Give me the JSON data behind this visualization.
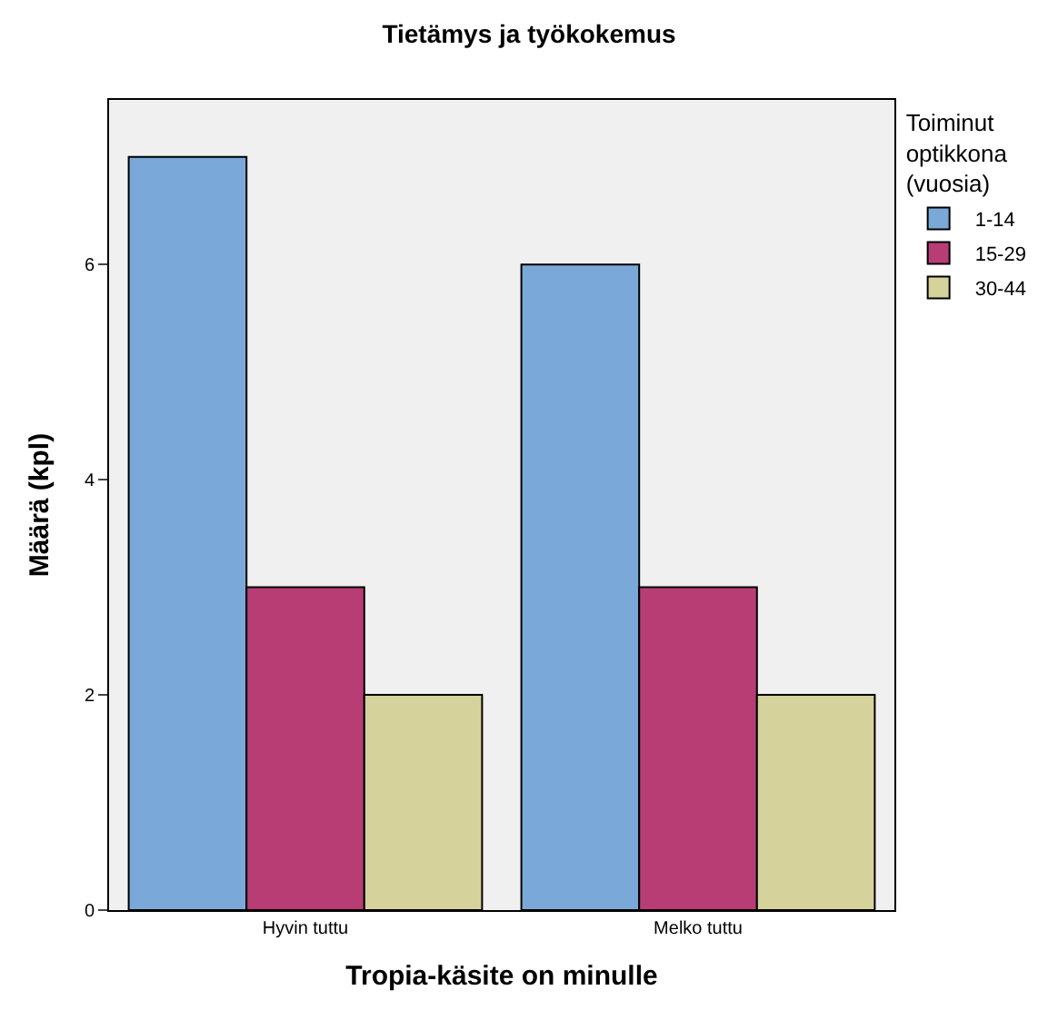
{
  "chart_data": {
    "type": "bar",
    "title": "Tietämys ja työkokemus",
    "xlabel": "Tropia-käsite on minulle",
    "ylabel": "Määrä (kpl)",
    "legend_title": "Toiminut optikkona (vuosia)",
    "categories": [
      "Hyvin tuttu",
      "Melko tuttu"
    ],
    "series": [
      {
        "name": "1-14",
        "color": "#7aa9d9",
        "values": [
          7,
          6
        ]
      },
      {
        "name": "15-29",
        "color": "#b83d75",
        "values": [
          3,
          3
        ]
      },
      {
        "name": "30-44",
        "color": "#d5d29c",
        "values": [
          2,
          2
        ]
      }
    ],
    "ylim": [
      0,
      7.53
    ],
    "yticks": [
      0,
      2,
      4,
      6
    ],
    "grid": false,
    "legend": "top right"
  }
}
